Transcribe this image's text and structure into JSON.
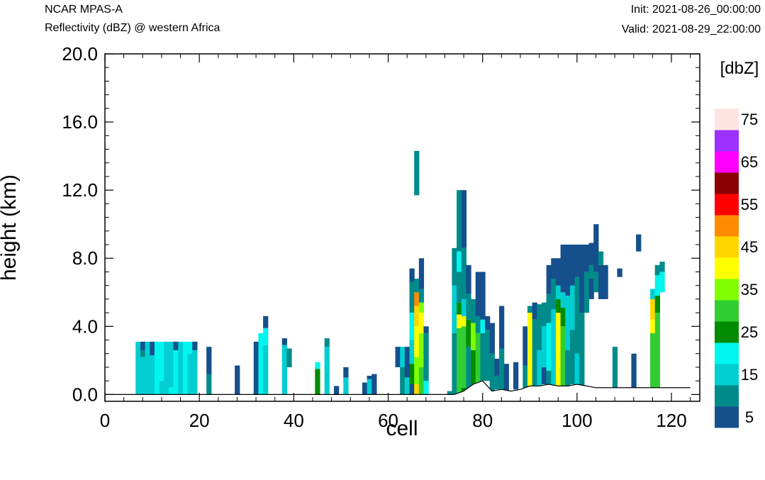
{
  "header": {
    "model": "NCAR MPAS-A",
    "field": "Reflectivity (dBZ) @ western Africa",
    "init": "Init: 2021-08-26_00:00:00",
    "valid": "Valid: 2021-08-29_22:00:00"
  },
  "chart_data": {
    "type": "heatmap",
    "xlabel": "cell",
    "ylabel": "height (km)",
    "xlim": [
      0,
      126
    ],
    "ylim": [
      -0.4,
      20.0
    ],
    "x_ticks": [
      "0",
      "20",
      "40",
      "60",
      "80",
      "100",
      "120"
    ],
    "y_ticks": [
      "0.0",
      "4.0",
      "8.0",
      "12.0",
      "16.0",
      "20.0"
    ],
    "legend": {
      "title": "[dbZ]",
      "placement": "right",
      "tick_labels": [
        "5",
        "15",
        "25",
        "35",
        "45",
        "55",
        "65",
        "75"
      ],
      "levels": [
        5,
        10,
        15,
        20,
        25,
        30,
        35,
        40,
        45,
        50,
        55,
        60,
        65,
        70,
        75
      ],
      "colors": [
        "#154f8c",
        "#008b8b",
        "#00ced1",
        "#00f5ee",
        "#008b00",
        "#32cd32",
        "#7fff00",
        "#ffff00",
        "#ffd700",
        "#ff8c00",
        "#ff0000",
        "#8b0000",
        "#ff00ff",
        "#9b30ff",
        "#ffe4e1"
      ]
    },
    "terrain": [
      [
        0,
        0.0
      ],
      [
        72,
        0.0
      ],
      [
        74,
        0.0
      ],
      [
        76,
        0.2
      ],
      [
        78,
        0.6
      ],
      [
        80,
        0.8
      ],
      [
        82,
        0.2
      ],
      [
        84,
        0.3
      ],
      [
        86,
        0.2
      ],
      [
        88,
        0.3
      ],
      [
        90,
        0.5
      ],
      [
        92,
        0.5
      ],
      [
        94,
        0.6
      ],
      [
        96,
        0.5
      ],
      [
        98,
        0.5
      ],
      [
        100,
        0.6
      ],
      [
        102,
        0.5
      ],
      [
        104,
        0.4
      ],
      [
        106,
        0.4
      ],
      [
        108,
        0.4
      ],
      [
        110,
        0.4
      ],
      [
        112,
        0.4
      ],
      [
        114,
        0.4
      ],
      [
        116,
        0.4
      ],
      [
        118,
        0.4
      ],
      [
        120,
        0.4
      ],
      [
        122,
        0.4
      ],
      [
        124,
        0.4
      ]
    ],
    "columns": [
      {
        "x": 7,
        "segments": [
          [
            0,
            3.1,
            15
          ]
        ]
      },
      {
        "x": 8,
        "segments": [
          [
            0,
            2.2,
            15
          ],
          [
            2.2,
            2.6,
            10
          ],
          [
            2.6,
            3.1,
            5
          ]
        ]
      },
      {
        "x": 9,
        "segments": [
          [
            0,
            3.1,
            15
          ]
        ]
      },
      {
        "x": 10,
        "segments": [
          [
            0,
            2.3,
            15
          ],
          [
            2.3,
            3.1,
            5
          ]
        ]
      },
      {
        "x": 11,
        "segments": [
          [
            0,
            3.1,
            20
          ]
        ]
      },
      {
        "x": 12,
        "segments": [
          [
            0,
            0.8,
            15
          ],
          [
            0.8,
            3.1,
            20
          ]
        ]
      },
      {
        "x": 13,
        "segments": [
          [
            0,
            3.1,
            15
          ]
        ]
      },
      {
        "x": 14,
        "segments": [
          [
            0,
            0.4,
            20
          ],
          [
            0.4,
            3.1,
            15
          ]
        ]
      },
      {
        "x": 15,
        "segments": [
          [
            0,
            2.6,
            20
          ],
          [
            2.6,
            3.1,
            5
          ]
        ]
      },
      {
        "x": 16,
        "segments": [
          [
            0,
            3.1,
            15
          ]
        ]
      },
      {
        "x": 17,
        "segments": [
          [
            0,
            3.1,
            20
          ]
        ]
      },
      {
        "x": 18,
        "segments": [
          [
            0,
            2.4,
            15
          ],
          [
            2.4,
            3.1,
            20
          ]
        ]
      },
      {
        "x": 19,
        "segments": [
          [
            0,
            2.6,
            15
          ],
          [
            2.6,
            3.1,
            5
          ]
        ]
      },
      {
        "x": 22,
        "segments": [
          [
            0,
            1.2,
            10
          ],
          [
            1.2,
            2.8,
            5
          ]
        ]
      },
      {
        "x": 28,
        "segments": [
          [
            0,
            1.7,
            5
          ]
        ]
      },
      {
        "x": 32,
        "segments": [
          [
            0,
            3.1,
            5
          ]
        ]
      },
      {
        "x": 33,
        "segments": [
          [
            0,
            3.6,
            20
          ]
        ]
      },
      {
        "x": 34,
        "segments": [
          [
            0,
            2.9,
            15
          ],
          [
            2.9,
            3.9,
            20
          ],
          [
            3.9,
            4.6,
            5
          ]
        ]
      },
      {
        "x": 38,
        "segments": [
          [
            0,
            2.9,
            15
          ],
          [
            2.9,
            3.3,
            5
          ]
        ]
      },
      {
        "x": 39,
        "segments": [
          [
            1.6,
            2.7,
            10
          ]
        ]
      },
      {
        "x": 45,
        "segments": [
          [
            0,
            1.5,
            25
          ],
          [
            1.5,
            1.9,
            20
          ]
        ]
      },
      {
        "x": 47,
        "segments": [
          [
            0,
            2.8,
            15
          ],
          [
            2.8,
            3.3,
            10
          ]
        ]
      },
      {
        "x": 49,
        "segments": [
          [
            0,
            0.5,
            5
          ]
        ]
      },
      {
        "x": 51,
        "segments": [
          [
            0,
            1.0,
            15
          ],
          [
            1.0,
            1.6,
            5
          ]
        ]
      },
      {
        "x": 55,
        "segments": [
          [
            0,
            0.7,
            5
          ]
        ]
      },
      {
        "x": 56,
        "segments": [
          [
            0,
            0.9,
            15
          ],
          [
            0.9,
            1.1,
            5
          ]
        ]
      },
      {
        "x": 57,
        "segments": [
          [
            0,
            1.2,
            5
          ]
        ]
      },
      {
        "x": 62,
        "segments": [
          [
            1.6,
            2.8,
            5
          ]
        ]
      },
      {
        "x": 63,
        "segments": [
          [
            0,
            1.6,
            10
          ],
          [
            1.6,
            2.8,
            15
          ]
        ]
      },
      {
        "x": 64,
        "segments": [
          [
            0,
            1.0,
            15
          ],
          [
            1.0,
            2.8,
            5
          ]
        ]
      },
      {
        "x": 65,
        "segments": [
          [
            0,
            0.6,
            5
          ],
          [
            0.6,
            1.8,
            25
          ],
          [
            1.8,
            3.2,
            15
          ],
          [
            3.2,
            4.8,
            20
          ],
          [
            4.8,
            6.6,
            10
          ],
          [
            6.6,
            7.4,
            5
          ]
        ]
      },
      {
        "x": 66,
        "segments": [
          [
            0,
            0.6,
            45
          ],
          [
            0.6,
            2.2,
            35
          ],
          [
            2.2,
            4.0,
            40
          ],
          [
            4.0,
            5.2,
            45
          ],
          [
            5.2,
            6.0,
            50
          ],
          [
            6.0,
            6.8,
            10
          ],
          [
            11.7,
            14.3,
            10
          ]
        ]
      },
      {
        "x": 67,
        "segments": [
          [
            0,
            1.6,
            30
          ],
          [
            1.6,
            3.6,
            35
          ],
          [
            3.6,
            4.8,
            40
          ],
          [
            4.8,
            5.4,
            35
          ],
          [
            5.4,
            6.2,
            10
          ],
          [
            6.2,
            8.0,
            5
          ]
        ]
      },
      {
        "x": 68,
        "segments": [
          [
            0,
            0.8,
            20
          ],
          [
            0.8,
            3.6,
            10
          ],
          [
            3.6,
            4.0,
            5
          ]
        ]
      },
      {
        "x": 73,
        "segments": [
          [
            0,
            0.2,
            10
          ]
        ]
      },
      {
        "x": 74,
        "segments": [
          [
            0,
            3.6,
            10
          ],
          [
            3.6,
            6.4,
            15
          ],
          [
            6.4,
            8.6,
            10
          ]
        ]
      },
      {
        "x": 75,
        "segments": [
          [
            0,
            3.9,
            30
          ],
          [
            3.9,
            4.7,
            40
          ],
          [
            4.7,
            5.4,
            25
          ],
          [
            5.4,
            7.2,
            10
          ],
          [
            7.2,
            8.4,
            20
          ],
          [
            8.4,
            12.0,
            10
          ]
        ]
      },
      {
        "x": 76,
        "segments": [
          [
            0,
            0.4,
            25
          ],
          [
            0.4,
            4.0,
            30
          ],
          [
            4.0,
            4.6,
            40
          ],
          [
            4.6,
            5.6,
            15
          ],
          [
            5.6,
            8.6,
            10
          ],
          [
            8.6,
            12.0,
            5
          ]
        ]
      },
      {
        "x": 77,
        "segments": [
          [
            0,
            2.8,
            10
          ],
          [
            2.8,
            4.4,
            25
          ],
          [
            4.4,
            5.9,
            10
          ],
          [
            5.9,
            7.6,
            5
          ]
        ]
      },
      {
        "x": 78,
        "segments": [
          [
            0,
            2.6,
            25
          ],
          [
            2.6,
            4.2,
            35
          ],
          [
            4.2,
            5.6,
            10
          ]
        ]
      },
      {
        "x": 79,
        "segments": [
          [
            0.6,
            3.6,
            30
          ],
          [
            3.6,
            4.6,
            10
          ],
          [
            4.6,
            7.2,
            5
          ]
        ]
      },
      {
        "x": 80,
        "segments": [
          [
            0.8,
            3.6,
            10
          ],
          [
            3.6,
            4.4,
            20
          ],
          [
            4.4,
            7.2,
            5
          ]
        ]
      },
      {
        "x": 81,
        "segments": [
          [
            0.8,
            3.8,
            10
          ],
          [
            3.8,
            4.6,
            5
          ]
        ]
      },
      {
        "x": 82,
        "segments": [
          [
            0.2,
            2.4,
            10
          ],
          [
            2.4,
            4.2,
            5
          ]
        ]
      },
      {
        "x": 83,
        "segments": [
          [
            0.3,
            1.1,
            10
          ],
          [
            1.1,
            2.1,
            5
          ]
        ]
      },
      {
        "x": 84,
        "segments": [
          [
            0.3,
            2.7,
            10
          ],
          [
            2.7,
            5.2,
            5
          ]
        ]
      },
      {
        "x": 85,
        "segments": [
          [
            0.2,
            1.8,
            5
          ]
        ]
      },
      {
        "x": 87,
        "segments": [
          [
            0.3,
            1.9,
            5
          ]
        ]
      },
      {
        "x": 89,
        "segments": [
          [
            0.4,
            1.7,
            10
          ],
          [
            1.7,
            4.0,
            5
          ]
        ]
      },
      {
        "x": 90,
        "segments": [
          [
            0.5,
            4.8,
            40
          ],
          [
            4.8,
            5.2,
            10
          ]
        ]
      },
      {
        "x": 91,
        "segments": [
          [
            0.5,
            4.4,
            10
          ],
          [
            4.4,
            5.4,
            5
          ]
        ]
      },
      {
        "x": 92,
        "segments": [
          [
            0.5,
            2.6,
            15
          ],
          [
            2.6,
            5.3,
            10
          ]
        ]
      },
      {
        "x": 93,
        "segments": [
          [
            0.6,
            1.6,
            5
          ],
          [
            1.6,
            4.0,
            15
          ],
          [
            4.0,
            5.4,
            10
          ]
        ]
      },
      {
        "x": 94,
        "segments": [
          [
            0.6,
            1.4,
            10
          ],
          [
            1.4,
            4.2,
            20
          ],
          [
            4.2,
            5.9,
            10
          ],
          [
            5.9,
            7.6,
            5
          ]
        ]
      },
      {
        "x": 95,
        "segments": [
          [
            0.5,
            5.0,
            15
          ],
          [
            5.0,
            6.8,
            10
          ],
          [
            6.8,
            8.0,
            5
          ]
        ]
      },
      {
        "x": 96,
        "segments": [
          [
            0.5,
            4.8,
            40
          ],
          [
            4.8,
            5.6,
            25
          ],
          [
            5.6,
            6.4,
            15
          ],
          [
            6.4,
            8.0,
            5
          ]
        ]
      },
      {
        "x": 97,
        "segments": [
          [
            0.5,
            4.0,
            30
          ],
          [
            4.0,
            5.1,
            25
          ],
          [
            5.1,
            6.0,
            15
          ],
          [
            6.0,
            8.8,
            5
          ]
        ]
      },
      {
        "x": 98,
        "segments": [
          [
            0.5,
            2.6,
            10
          ],
          [
            2.6,
            5.8,
            15
          ],
          [
            5.8,
            8.8,
            5
          ]
        ]
      },
      {
        "x": 99,
        "segments": [
          [
            0.6,
            3.8,
            10
          ],
          [
            3.8,
            6.4,
            15
          ],
          [
            6.4,
            8.8,
            5
          ]
        ]
      },
      {
        "x": 100,
        "segments": [
          [
            0.6,
            2.4,
            15
          ],
          [
            2.4,
            6.9,
            10
          ],
          [
            6.9,
            8.8,
            5
          ]
        ]
      },
      {
        "x": 101,
        "segments": [
          [
            0.5,
            4.8,
            10
          ],
          [
            4.8,
            8.8,
            5
          ]
        ]
      },
      {
        "x": 102,
        "segments": [
          [
            4.8,
            7.2,
            10
          ],
          [
            7.2,
            8.8,
            5
          ]
        ]
      },
      {
        "x": 103,
        "segments": [
          [
            5.6,
            6.8,
            5
          ],
          [
            6.8,
            7.6,
            10
          ],
          [
            7.6,
            8.9,
            5
          ]
        ]
      },
      {
        "x": 104,
        "segments": [
          [
            6.0,
            7.2,
            10
          ],
          [
            7.2,
            10.0,
            5
          ]
        ]
      },
      {
        "x": 105,
        "segments": [
          [
            5.6,
            7.6,
            5
          ],
          [
            7.6,
            8.4,
            10
          ]
        ]
      },
      {
        "x": 106,
        "segments": [
          [
            5.6,
            7.6,
            5
          ]
        ]
      },
      {
        "x": 108,
        "segments": [
          [
            0.4,
            2.8,
            10
          ]
        ]
      },
      {
        "x": 109,
        "segments": [
          [
            6.9,
            7.4,
            5
          ]
        ]
      },
      {
        "x": 112,
        "segments": [
          [
            0.4,
            2.4,
            5
          ]
        ]
      },
      {
        "x": 113,
        "segments": [
          [
            8.4,
            9.4,
            5
          ]
        ]
      },
      {
        "x": 116,
        "segments": [
          [
            0.4,
            3.6,
            30
          ],
          [
            3.6,
            4.4,
            40
          ],
          [
            4.4,
            5.6,
            45
          ],
          [
            5.6,
            6.2,
            15
          ]
        ]
      },
      {
        "x": 117,
        "segments": [
          [
            0.4,
            4.8,
            30
          ],
          [
            4.8,
            5.8,
            25
          ],
          [
            5.8,
            7.0,
            20
          ],
          [
            7.0,
            7.6,
            10
          ]
        ]
      },
      {
        "x": 118,
        "segments": [
          [
            6.0,
            7.2,
            20
          ],
          [
            7.2,
            7.8,
            10
          ]
        ]
      }
    ]
  }
}
